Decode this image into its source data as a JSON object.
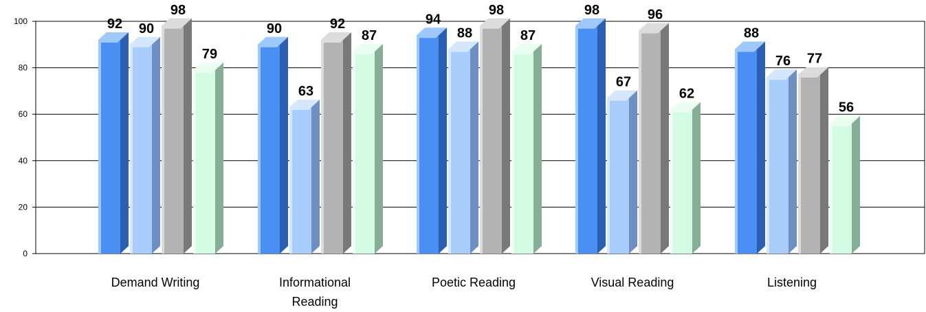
{
  "chart_data": {
    "type": "bar",
    "categories": [
      "Demand Writing",
      "Informational Reading",
      "Poetic Reading",
      "Visual Reading",
      "Listening"
    ],
    "category_lines": [
      [
        "Demand Writing"
      ],
      [
        "Informational",
        "Reading"
      ],
      [
        "Poetic Reading"
      ],
      [
        "Visual Reading"
      ],
      [
        "Listening"
      ]
    ],
    "series": [
      {
        "values": [
          92,
          90,
          94,
          98,
          88
        ]
      },
      {
        "values": [
          90,
          63,
          88,
          67,
          76
        ]
      },
      {
        "values": [
          98,
          92,
          98,
          96,
          77
        ]
      },
      {
        "values": [
          79,
          87,
          87,
          62,
          56
        ]
      }
    ],
    "ylim": [
      0,
      100
    ],
    "yticks": [
      0,
      20,
      40,
      60,
      80,
      100
    ],
    "grid": true,
    "bar_style": "3d",
    "series_colors": [
      {
        "front": "#4a90f2",
        "light": "#9fc8fb",
        "side": "#2a5fb4"
      },
      {
        "front": "#a9cdfa",
        "light": "#d4e7fd",
        "side": "#6d8fc4"
      },
      {
        "front": "#b3b3b3",
        "light": "#dcdcdc",
        "side": "#787878"
      },
      {
        "front": "#d3fbe3",
        "light": "#eafef1",
        "side": "#86ad95"
      }
    ]
  }
}
